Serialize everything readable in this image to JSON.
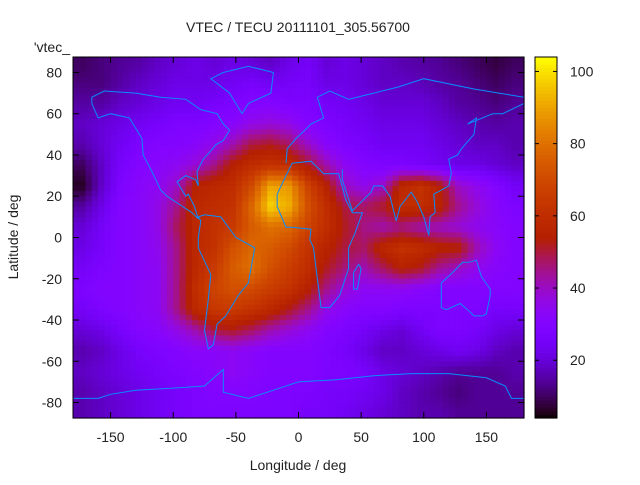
{
  "chart_data": {
    "type": "heatmap",
    "title": "VTEC / TECU 20111101_305.56700",
    "xlabel": "Longitude / deg",
    "ylabel": "Latitude / deg",
    "key_label": "'vtec_",
    "xlim": [
      -180,
      180
    ],
    "ylim": [
      -87.5,
      87.5
    ],
    "xticks": [
      -150,
      -100,
      -50,
      0,
      50,
      100,
      150
    ],
    "yticks": [
      -80,
      -60,
      -40,
      -20,
      0,
      20,
      40,
      60,
      80
    ],
    "colorbar": {
      "range": [
        4,
        104
      ],
      "ticks": [
        20,
        40,
        60,
        80,
        100
      ],
      "palette": "black-blue-red-yellow"
    },
    "grid": false,
    "lon_centers": [
      -172.5,
      -157.5,
      -142.5,
      -127.5,
      -112.5,
      -97.5,
      -82.5,
      -67.5,
      -52.5,
      -37.5,
      -22.5,
      -7.5,
      7.5,
      22.5,
      37.5,
      52.5,
      67.5,
      82.5,
      97.5,
      112.5,
      127.5,
      142.5,
      157.5,
      172.5
    ],
    "lat_centers": [
      85,
      75,
      65,
      55,
      45,
      35,
      25,
      15,
      5,
      -5,
      -15,
      -25,
      -35,
      -45,
      -55,
      -65,
      -75,
      -85
    ],
    "values": [
      [
        10,
        12,
        14,
        15,
        18,
        20,
        22,
        20,
        22,
        20,
        18,
        22,
        25,
        20,
        22,
        20,
        18,
        16,
        15,
        14,
        12,
        10,
        8,
        10
      ],
      [
        12,
        12,
        15,
        18,
        20,
        22,
        22,
        22,
        24,
        26,
        24,
        25,
        26,
        22,
        22,
        20,
        18,
        18,
        17,
        15,
        14,
        12,
        10,
        12
      ],
      [
        15,
        15,
        18,
        20,
        22,
        24,
        24,
        26,
        28,
        30,
        30,
        28,
        28,
        25,
        24,
        22,
        20,
        20,
        20,
        18,
        15,
        14,
        12,
        14
      ],
      [
        18,
        20,
        22,
        24,
        26,
        28,
        28,
        30,
        32,
        36,
        38,
        36,
        30,
        28,
        26,
        24,
        22,
        22,
        22,
        20,
        18,
        16,
        15,
        16
      ],
      [
        16,
        20,
        24,
        28,
        30,
        30,
        32,
        36,
        42,
        50,
        52,
        48,
        40,
        32,
        28,
        26,
        24,
        24,
        24,
        22,
        20,
        18,
        18,
        16
      ],
      [
        10,
        18,
        26,
        30,
        32,
        34,
        38,
        45,
        55,
        60,
        62,
        60,
        52,
        42,
        34,
        30,
        28,
        28,
        26,
        24,
        22,
        22,
        20,
        18
      ],
      [
        6,
        18,
        28,
        32,
        34,
        40,
        55,
        58,
        60,
        70,
        90,
        88,
        68,
        55,
        40,
        35,
        40,
        58,
        62,
        55,
        40,
        35,
        30,
        25
      ],
      [
        15,
        22,
        30,
        32,
        36,
        45,
        58,
        60,
        62,
        78,
        98,
        92,
        72,
        60,
        50,
        48,
        52,
        60,
        60,
        56,
        45,
        38,
        32,
        28
      ],
      [
        20,
        25,
        30,
        32,
        36,
        48,
        58,
        62,
        65,
        75,
        80,
        78,
        68,
        60,
        52,
        45,
        42,
        45,
        42,
        40,
        38,
        35,
        32,
        30
      ],
      [
        22,
        26,
        30,
        32,
        35,
        45,
        58,
        62,
        72,
        78,
        75,
        70,
        62,
        56,
        50,
        48,
        58,
        62,
        60,
        56,
        55,
        42,
        34,
        30
      ],
      [
        25,
        28,
        30,
        32,
        34,
        45,
        58,
        65,
        75,
        80,
        72,
        66,
        60,
        52,
        46,
        42,
        48,
        55,
        52,
        44,
        40,
        35,
        32,
        30
      ],
      [
        28,
        30,
        30,
        32,
        34,
        45,
        60,
        68,
        72,
        70,
        66,
        62,
        55,
        45,
        38,
        34,
        34,
        34,
        32,
        30,
        30,
        30,
        30,
        30
      ],
      [
        25,
        28,
        30,
        32,
        34,
        45,
        58,
        64,
        65,
        62,
        58,
        52,
        45,
        36,
        32,
        30,
        30,
        28,
        28,
        28,
        28,
        28,
        26,
        26
      ],
      [
        20,
        22,
        26,
        30,
        32,
        36,
        42,
        50,
        52,
        48,
        42,
        38,
        34,
        30,
        28,
        25,
        22,
        20,
        24,
        28,
        28,
        26,
        22,
        20
      ],
      [
        16,
        18,
        22,
        26,
        28,
        30,
        32,
        32,
        34,
        32,
        30,
        30,
        30,
        28,
        26,
        22,
        18,
        18,
        20,
        22,
        24,
        22,
        18,
        16
      ],
      [
        18,
        20,
        22,
        24,
        26,
        28,
        30,
        32,
        34,
        32,
        30,
        30,
        30,
        28,
        28,
        26,
        22,
        20,
        18,
        16,
        14,
        14,
        14,
        16
      ],
      [
        16,
        18,
        20,
        22,
        24,
        26,
        28,
        30,
        30,
        30,
        28,
        28,
        28,
        26,
        26,
        24,
        22,
        18,
        16,
        14,
        12,
        14,
        14,
        14
      ],
      [
        16,
        18,
        20,
        22,
        24,
        26,
        28,
        28,
        28,
        28,
        28,
        28,
        26,
        26,
        24,
        22,
        20,
        18,
        16,
        16,
        14,
        14,
        14,
        14
      ]
    ],
    "coastline_color": "#0a8cff",
    "coastlines": [
      {
        "name": "north-america",
        "pts": [
          [
            -165,
            65
          ],
          [
            -160,
            58
          ],
          [
            -150,
            60
          ],
          [
            -135,
            58
          ],
          [
            -125,
            48
          ],
          [
            -124,
            40
          ],
          [
            -117,
            32
          ],
          [
            -110,
            23
          ],
          [
            -105,
            20
          ],
          [
            -95,
            16
          ],
          [
            -85,
            12
          ],
          [
            -80,
            9
          ],
          [
            -83,
            15
          ],
          [
            -88,
            21
          ],
          [
            -90,
            20
          ],
          [
            -97,
            27
          ],
          [
            -90,
            30
          ],
          [
            -82,
            28
          ],
          [
            -80,
            25
          ],
          [
            -81,
            32
          ],
          [
            -76,
            38
          ],
          [
            -70,
            42
          ],
          [
            -66,
            45
          ],
          [
            -60,
            47
          ],
          [
            -55,
            52
          ],
          [
            -60,
            55
          ],
          [
            -65,
            60
          ],
          [
            -78,
            62
          ],
          [
            -90,
            67
          ],
          [
            -110,
            68
          ],
          [
            -130,
            70
          ],
          [
            -155,
            71
          ],
          [
            -165,
            68
          ],
          [
            -165,
            65
          ]
        ]
      },
      {
        "name": "greenland",
        "pts": [
          [
            -45,
            60
          ],
          [
            -40,
            65
          ],
          [
            -22,
            70
          ],
          [
            -20,
            80
          ],
          [
            -40,
            83
          ],
          [
            -60,
            80
          ],
          [
            -70,
            77
          ],
          [
            -55,
            70
          ],
          [
            -45,
            60
          ]
        ]
      },
      {
        "name": "south-america",
        "pts": [
          [
            -80,
            10
          ],
          [
            -75,
            11
          ],
          [
            -62,
            10
          ],
          [
            -50,
            0
          ],
          [
            -35,
            -5
          ],
          [
            -40,
            -22
          ],
          [
            -48,
            -28
          ],
          [
            -58,
            -38
          ],
          [
            -65,
            -42
          ],
          [
            -68,
            -52
          ],
          [
            -72,
            -54
          ],
          [
            -75,
            -45
          ],
          [
            -72,
            -30
          ],
          [
            -70,
            -18
          ],
          [
            -80,
            -5
          ],
          [
            -80,
            0
          ],
          [
            -78,
            8
          ],
          [
            -80,
            10
          ]
        ]
      },
      {
        "name": "africa",
        "pts": [
          [
            -17,
            21
          ],
          [
            -17,
            15
          ],
          [
            -10,
            5
          ],
          [
            -5,
            5
          ],
          [
            10,
            4
          ],
          [
            9,
            -1
          ],
          [
            12,
            -5
          ],
          [
            14,
            -15
          ],
          [
            18,
            -34
          ],
          [
            25,
            -34
          ],
          [
            33,
            -28
          ],
          [
            40,
            -15
          ],
          [
            40,
            -5
          ],
          [
            45,
            2
          ],
          [
            51,
            12
          ],
          [
            43,
            12
          ],
          [
            38,
            18
          ],
          [
            32,
            31
          ],
          [
            20,
            31
          ],
          [
            10,
            37
          ],
          [
            -5,
            36
          ],
          [
            -10,
            30
          ],
          [
            -17,
            21
          ]
        ]
      },
      {
        "name": "madagascar",
        "pts": [
          [
            44,
            -25
          ],
          [
            47,
            -25
          ],
          [
            50,
            -15
          ],
          [
            48,
            -13
          ],
          [
            44,
            -17
          ],
          [
            44,
            -25
          ]
        ]
      },
      {
        "name": "eurasia-north",
        "pts": [
          [
            -10,
            36
          ],
          [
            -9,
            43
          ],
          [
            -2,
            48
          ],
          [
            5,
            52
          ],
          [
            10,
            55
          ],
          [
            20,
            58
          ],
          [
            15,
            68
          ],
          [
            25,
            71
          ],
          [
            40,
            67
          ],
          [
            60,
            70
          ],
          [
            80,
            73
          ],
          [
            100,
            77
          ],
          [
            140,
            72
          ],
          [
            160,
            70
          ],
          [
            180,
            68
          ]
        ]
      },
      {
        "name": "eurasia-south",
        "pts": [
          [
            35,
            33
          ],
          [
            35,
            28
          ],
          [
            43,
            13
          ],
          [
            58,
            22
          ],
          [
            60,
            25
          ],
          [
            67,
            25
          ],
          [
            73,
            20
          ],
          [
            78,
            8
          ],
          [
            81,
            15
          ],
          [
            90,
            22
          ],
          [
            95,
            17
          ],
          [
            100,
            10
          ],
          [
            104,
            1
          ],
          [
            105,
            10
          ],
          [
            109,
            12
          ],
          [
            108,
            21
          ],
          [
            120,
            25
          ],
          [
            122,
            31
          ],
          [
            120,
            38
          ],
          [
            127,
            40
          ],
          [
            130,
            43
          ],
          [
            140,
            50
          ],
          [
            142,
            58
          ],
          [
            135,
            55
          ],
          [
            155,
            60
          ],
          [
            163,
            60
          ],
          [
            180,
            65
          ]
        ]
      },
      {
        "name": "australia",
        "pts": [
          [
            114,
            -22
          ],
          [
            114,
            -34
          ],
          [
            118,
            -35
          ],
          [
            129,
            -32
          ],
          [
            135,
            -35
          ],
          [
            140,
            -38
          ],
          [
            147,
            -38
          ],
          [
            150,
            -37
          ],
          [
            153,
            -28
          ],
          [
            153,
            -25
          ],
          [
            146,
            -19
          ],
          [
            142,
            -11
          ],
          [
            136,
            -12
          ],
          [
            131,
            -12
          ],
          [
            123,
            -17
          ],
          [
            114,
            -22
          ]
        ]
      },
      {
        "name": "antarctica",
        "pts": [
          [
            -180,
            -78
          ],
          [
            -160,
            -78
          ],
          [
            -150,
            -76
          ],
          [
            -130,
            -74
          ],
          [
            -100,
            -73
          ],
          [
            -75,
            -72
          ],
          [
            -60,
            -64
          ],
          [
            -60,
            -75
          ],
          [
            -40,
            -78
          ],
          [
            -20,
            -74
          ],
          [
            0,
            -70
          ],
          [
            30,
            -69
          ],
          [
            60,
            -67
          ],
          [
            90,
            -66
          ],
          [
            120,
            -66
          ],
          [
            150,
            -68
          ],
          [
            165,
            -72
          ],
          [
            170,
            -78
          ],
          [
            180,
            -78
          ]
        ]
      }
    ]
  }
}
